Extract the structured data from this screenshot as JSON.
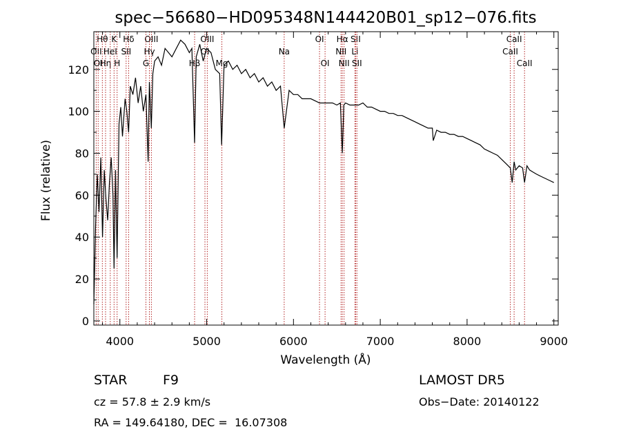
{
  "chart_data": {
    "type": "line",
    "title": "spec−56680−HD095348N144420B01_sp12−076.fits",
    "xlabel": "Wavelength (Å)",
    "ylabel": "Flux (relative)",
    "xlim": [
      3700,
      9050
    ],
    "ylim": [
      -2,
      138
    ],
    "xticks": [
      4000,
      5000,
      6000,
      7000,
      8000,
      9000
    ],
    "yticks": [
      0,
      20,
      40,
      60,
      80,
      100,
      120
    ],
    "grid": false,
    "line_color": "#000000",
    "marker_color": "#b22222",
    "series": [
      {
        "x": [
          3700,
          3720,
          3740,
          3760,
          3780,
          3800,
          3820,
          3840,
          3860,
          3880,
          3900,
          3920,
          3933,
          3950,
          3968,
          3990,
          4010,
          4030,
          4060,
          4080,
          4101,
          4120,
          4150,
          4180,
          4210,
          4240,
          4270,
          4300,
          4326,
          4340,
          4362,
          4380,
          4400,
          4440,
          4480,
          4520,
          4560,
          4600,
          4650,
          4700,
          4750,
          4800,
          4830,
          4861,
          4880,
          4920,
          4960,
          5000,
          5050,
          5100,
          5150,
          5172,
          5200,
          5250,
          5300,
          5350,
          5400,
          5450,
          5500,
          5550,
          5600,
          5650,
          5700,
          5750,
          5800,
          5850,
          5893,
          5950,
          6000,
          6050,
          6100,
          6150,
          6200,
          6250,
          6300,
          6350,
          6400,
          6450,
          6500,
          6540,
          6563,
          6580,
          6600,
          6650,
          6700,
          6750,
          6800,
          6850,
          6900,
          6950,
          7000,
          7050,
          7100,
          7150,
          7200,
          7250,
          7300,
          7350,
          7400,
          7450,
          7500,
          7550,
          7600,
          7610,
          7650,
          7700,
          7750,
          7800,
          7850,
          7900,
          7950,
          8000,
          8050,
          8100,
          8150,
          8200,
          8250,
          8300,
          8350,
          8400,
          8450,
          8498,
          8520,
          8542,
          8560,
          8600,
          8640,
          8662,
          8690,
          8720,
          8760,
          8800,
          8850,
          8900,
          8950,
          9000
        ],
        "y": [
          8,
          45,
          70,
          52,
          78,
          40,
          72,
          58,
          48,
          66,
          78,
          60,
          25,
          72,
          30,
          94,
          102,
          88,
          106,
          100,
          90,
          112,
          108,
          116,
          104,
          112,
          100,
          108,
          76,
          114,
          92,
          118,
          124,
          126,
          122,
          130,
          128,
          126,
          130,
          134,
          132,
          128,
          130,
          85,
          126,
          132,
          124,
          130,
          128,
          120,
          118,
          84,
          122,
          124,
          120,
          122,
          118,
          120,
          116,
          118,
          114,
          116,
          112,
          114,
          110,
          112,
          92,
          110,
          108,
          108,
          106,
          106,
          106,
          105,
          104,
          104,
          104,
          104,
          103,
          104,
          80,
          103,
          104,
          103,
          103,
          103,
          104,
          102,
          102,
          101,
          100,
          100,
          99,
          99,
          98,
          98,
          97,
          96,
          95,
          94,
          93,
          92,
          92,
          86,
          91,
          90,
          90,
          89,
          89,
          88,
          88,
          87,
          86,
          85,
          84,
          82,
          81,
          80,
          79,
          77,
          75,
          73,
          66,
          76,
          72,
          74,
          73,
          66,
          74,
          72,
          71,
          70,
          69,
          68,
          67,
          66
        ]
      }
    ],
    "lines": [
      {
        "label": "Hθ",
        "x": 3798,
        "row": 1
      },
      {
        "label": "OII",
        "x": 3727,
        "row": 2
      },
      {
        "label": "OI",
        "x": 3750,
        "row": 3
      },
      {
        "label": "Hη",
        "x": 3835,
        "row": 3
      },
      {
        "label": "K",
        "x": 3933,
        "row": 1
      },
      {
        "label": "HeI",
        "x": 3889,
        "row": 2
      },
      {
        "label": "H",
        "x": 3968,
        "row": 3
      },
      {
        "label": "Hδ",
        "x": 4101,
        "row": 1
      },
      {
        "label": "SII",
        "x": 4072,
        "row": 2
      },
      {
        "label": "OIII",
        "x": 4363,
        "row": 1
      },
      {
        "label": "Hγ",
        "x": 4340,
        "row": 2
      },
      {
        "label": "G",
        "x": 4300,
        "row": 3
      },
      {
        "label": "OIII",
        "x": 5007,
        "row": 1
      },
      {
        "label": "OI",
        "x": 4980,
        "row": 2
      },
      {
        "label": "Hβ",
        "x": 4861,
        "row": 3
      },
      {
        "label": "Mg",
        "x": 5175,
        "row": 3
      },
      {
        "label": "Na",
        "x": 5893,
        "row": 2
      },
      {
        "label": "OI",
        "x": 6300,
        "row": 1
      },
      {
        "label": "OI",
        "x": 6364,
        "row": 3
      },
      {
        "label": "Hα",
        "x": 6563,
        "row": 1
      },
      {
        "label": "NII",
        "x": 6548,
        "row": 2
      },
      {
        "label": "NII",
        "x": 6583,
        "row": 3
      },
      {
        "label": "SII",
        "x": 6716,
        "row": 1
      },
      {
        "label": "Li",
        "x": 6708,
        "row": 2
      },
      {
        "label": "SII",
        "x": 6731,
        "row": 3
      },
      {
        "label": "CaII",
        "x": 8542,
        "row": 1
      },
      {
        "label": "CaII",
        "x": 8498,
        "row": 2
      },
      {
        "label": "CaII",
        "x": 8662,
        "row": 3
      }
    ]
  },
  "info": {
    "object_class": "STAR",
    "subclass": "F9",
    "survey": "LAMOST DR5",
    "redshift": "cz = 57.8 ± 2.9 km/s",
    "obs_date": "Obs−Date: 20140122",
    "coords": "RA = 149.64180, DEC =  16.07308"
  }
}
